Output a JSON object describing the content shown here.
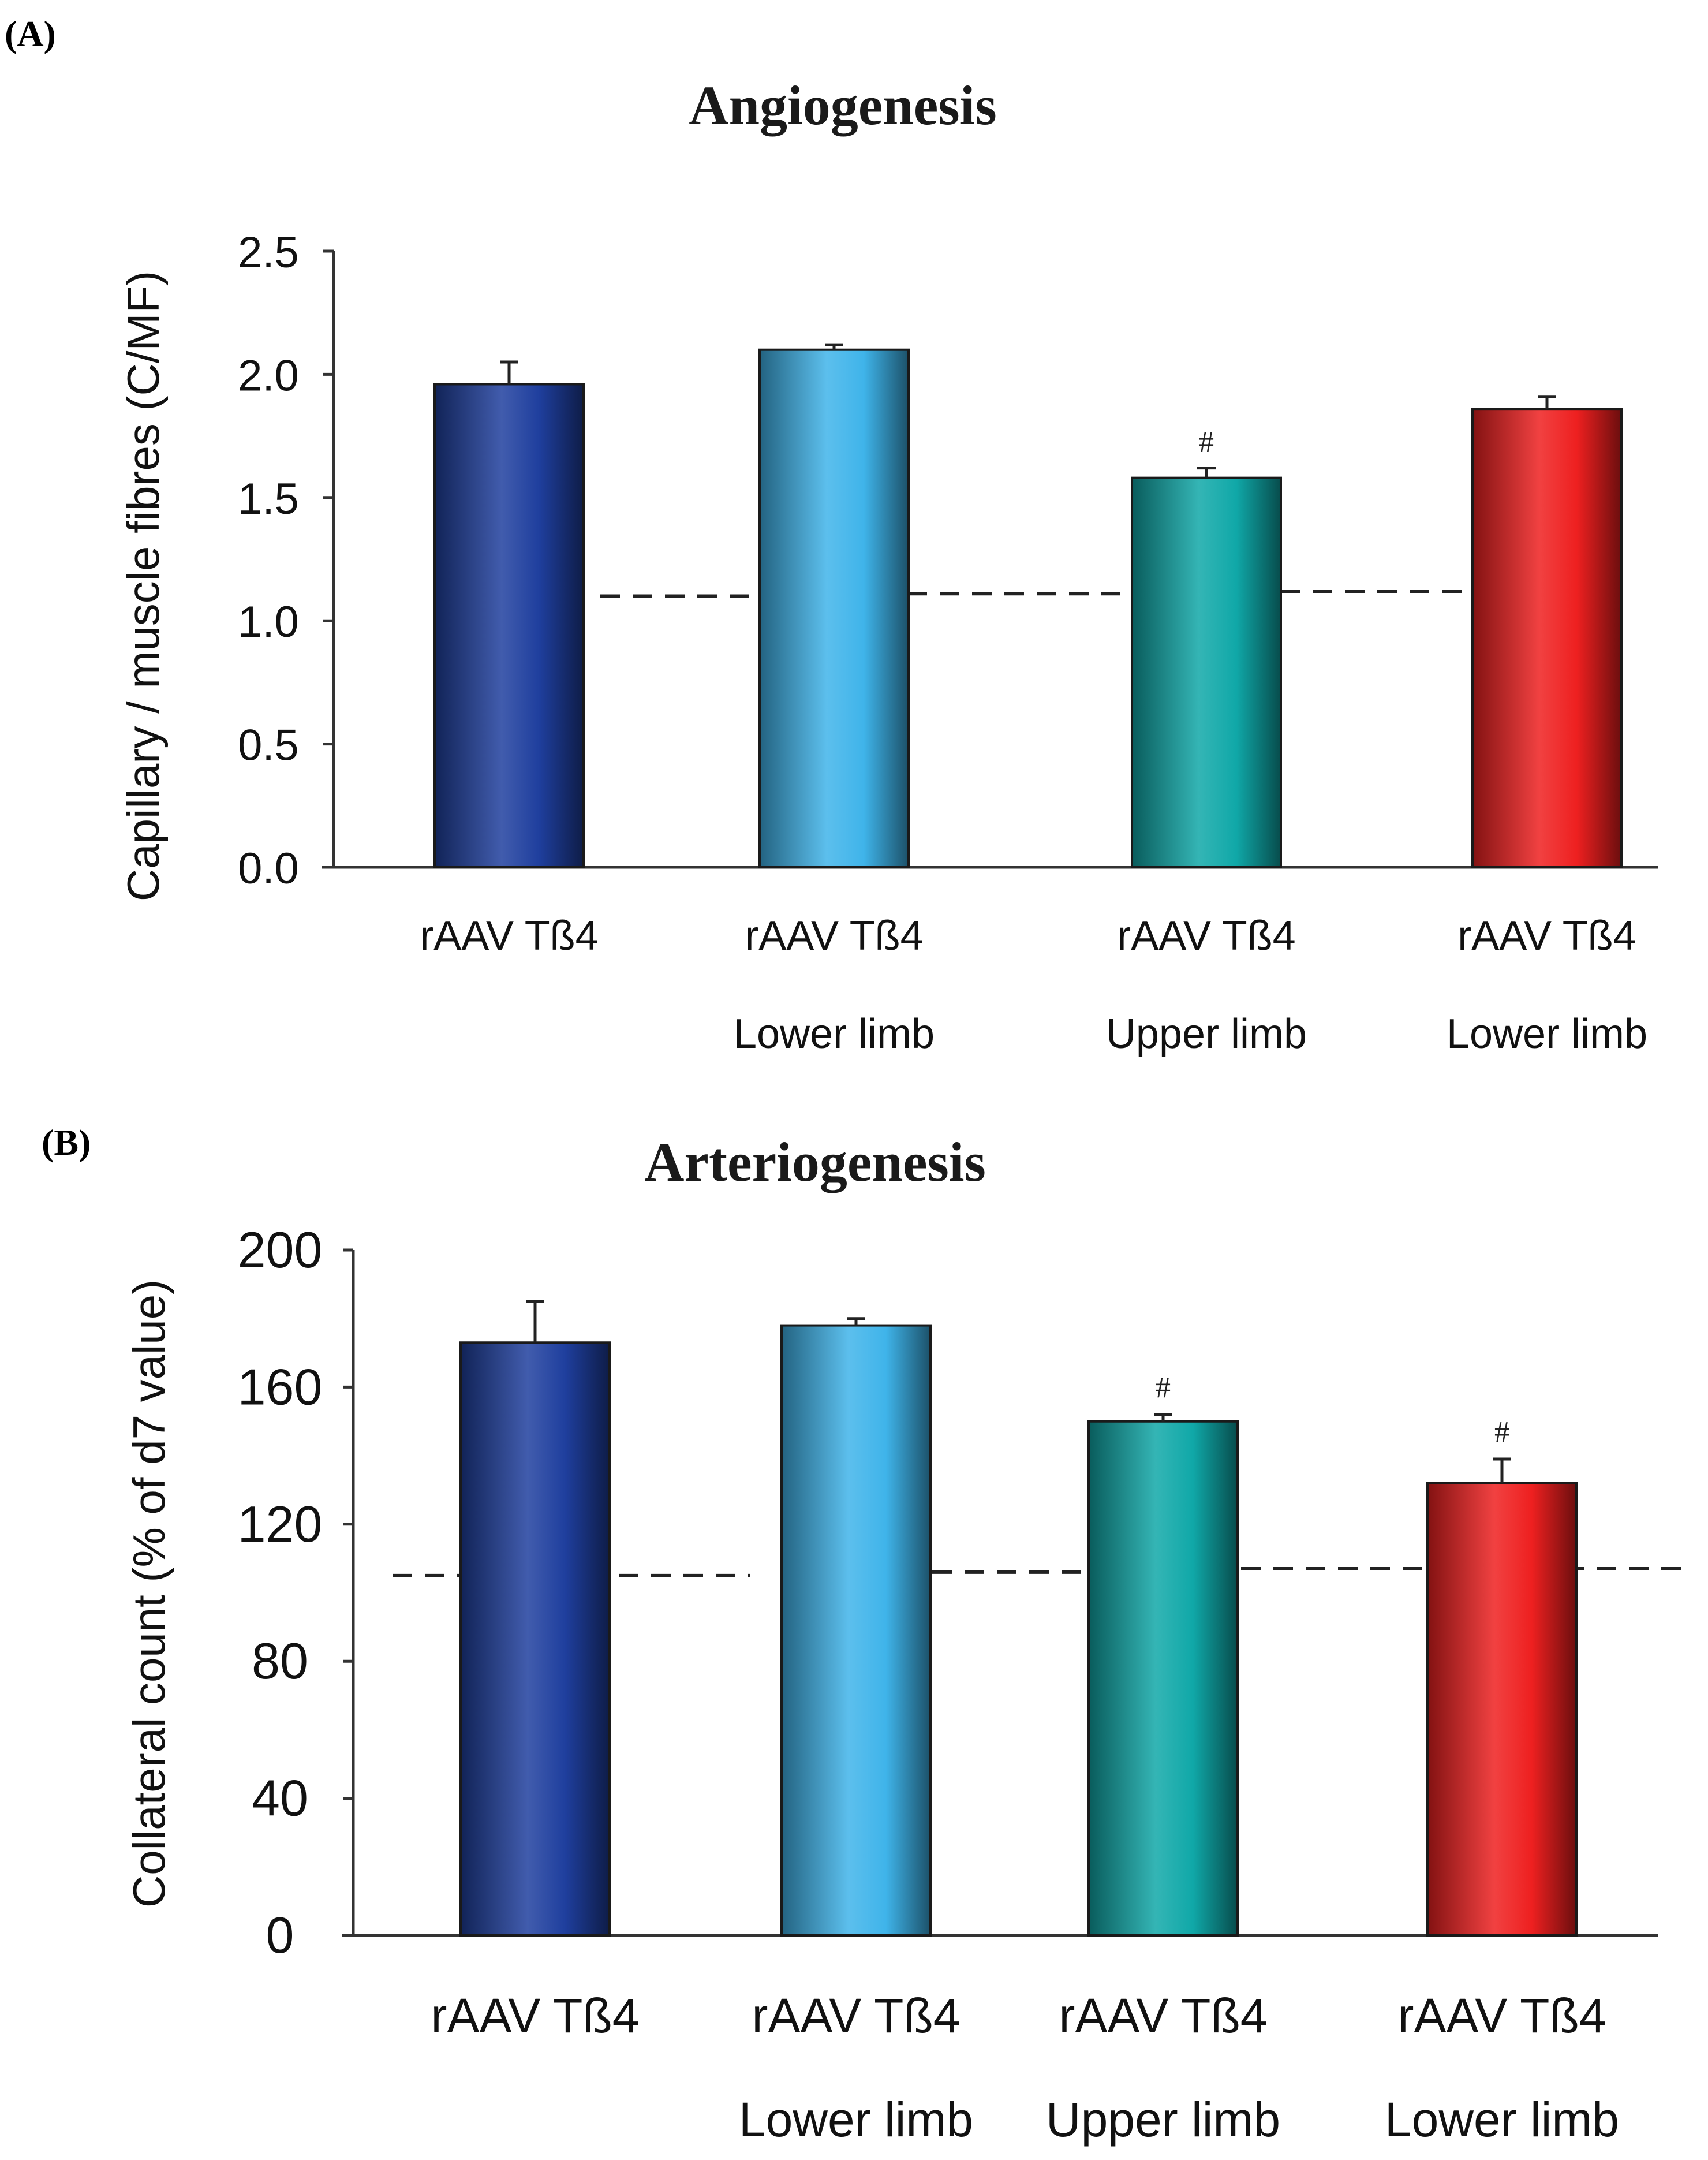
{
  "panels": [
    {
      "letter": "(A)"
    },
    {
      "letter": "(B)"
    }
  ],
  "chart_data": [
    {
      "type": "bar",
      "title": "Angiogenesis",
      "xlabel": "",
      "ylabel": "Capillary / muscle fibres (C/MF)",
      "ylim": [
        0,
        2.5
      ],
      "ytick_labels": [
        "0.0",
        "0.5",
        "1.0",
        "1.5",
        "2.0",
        "2.5"
      ],
      "categories": [
        {
          "line1": "rAAV Tß4",
          "line2": ""
        },
        {
          "line1": "rAAV Tß4",
          "line2": "Lower limb"
        },
        {
          "line1": "rAAV Tß4",
          "line2": "Upper limb"
        },
        {
          "line1": "rAAV Tß4",
          "line2": "Lower limb"
        }
      ],
      "values": [
        1.96,
        2.1,
        1.58,
        1.86
      ],
      "errors": [
        0.09,
        0.02,
        0.04,
        0.05
      ],
      "annotations": [
        "",
        "",
        "#",
        ""
      ],
      "bar_colors": [
        "#1f3f9e",
        "#3fb4ea",
        "#10a8a8",
        "#ee2020"
      ],
      "reference_line": {
        "style": "dashed",
        "values": [
          1.1,
          1.12
        ]
      }
    },
    {
      "type": "bar",
      "title": "Arteriogenesis",
      "xlabel": "",
      "ylabel": "Collateral count (% of d7 value)",
      "ylim": [
        0,
        200
      ],
      "ytick_labels": [
        "0",
        "40",
        "80",
        "120",
        "160",
        "200"
      ],
      "categories": [
        {
          "line1": "rAAV Tß4",
          "line2": ""
        },
        {
          "line1": "rAAV Tß4",
          "line2": "Lower limb"
        },
        {
          "line1": "rAAV Tß4",
          "line2": "Upper limb"
        },
        {
          "line1": "rAAV Tß4",
          "line2": "Lower limb"
        }
      ],
      "values": [
        173,
        178,
        150,
        132
      ],
      "errors": [
        12,
        2,
        2,
        7
      ],
      "annotations": [
        "",
        "",
        "#",
        "#"
      ],
      "bar_colors": [
        "#1f3f9e",
        "#3fb4ea",
        "#10a8a8",
        "#ee2020"
      ],
      "reference_line": {
        "style": "dashed",
        "values": [
          105,
          107
        ]
      }
    }
  ]
}
